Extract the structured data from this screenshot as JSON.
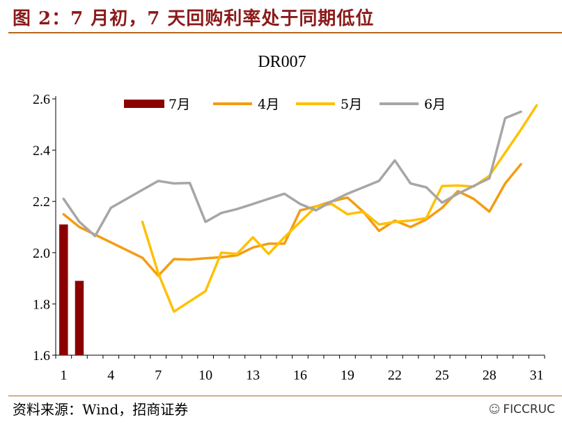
{
  "figure": {
    "title": "图 2：7 月初，7 天回购利率处于同期低位",
    "source": "资料来源：Wind，招商证券",
    "watermark": "FICCRUC",
    "watermark_icon": "wechat-icon"
  },
  "chart_data": {
    "type": "bar+line",
    "title": "DR007",
    "xlabel": "",
    "ylabel": "",
    "xlim": [
      1,
      31
    ],
    "ylim": [
      1.6,
      2.6
    ],
    "x_ticks": [
      "1",
      "4",
      "7",
      "10",
      "13",
      "16",
      "19",
      "22",
      "25",
      "28",
      "31"
    ],
    "y_ticks": [
      "1.6",
      "1.8",
      "2.0",
      "2.2",
      "2.4",
      "2.6"
    ],
    "grid": false,
    "legend_position": "top",
    "series": [
      {
        "name": "7月",
        "type": "bar",
        "color": "#8b0000",
        "x": [
          1,
          2
        ],
        "values": [
          2.11,
          1.89
        ]
      },
      {
        "name": "4月",
        "type": "line",
        "color": "#f39c12",
        "x": [
          1,
          2,
          3,
          4,
          5,
          6,
          7,
          8,
          9,
          10,
          11,
          12,
          13,
          14,
          15,
          16,
          17,
          18,
          19,
          20,
          21,
          22,
          23,
          24,
          25,
          26,
          27,
          28,
          29,
          30
        ],
        "values": [
          2.15,
          2.1,
          2.07,
          2.04,
          2.01,
          1.98,
          1.91,
          1.975,
          1.973,
          1.978,
          1.982,
          1.99,
          2.02,
          2.035,
          2.035,
          2.165,
          2.18,
          2.2,
          2.215,
          2.16,
          2.085,
          2.125,
          2.1,
          2.13,
          2.175,
          2.24,
          2.21,
          2.16,
          2.27,
          2.345
        ]
      },
      {
        "name": "5月",
        "type": "line",
        "color": "#ffc000",
        "x": [
          6,
          7,
          8,
          9,
          10,
          11,
          12,
          13,
          14,
          15,
          16,
          17,
          18,
          19,
          20,
          21,
          22,
          23,
          24,
          25,
          26,
          27,
          28,
          29,
          30,
          31
        ],
        "values": [
          2.12,
          1.92,
          1.77,
          1.81,
          1.85,
          2.0,
          1.995,
          2.06,
          1.995,
          2.06,
          2.12,
          2.18,
          2.19,
          2.15,
          2.16,
          2.11,
          2.12,
          2.125,
          2.135,
          2.26,
          2.262,
          2.258,
          2.3,
          2.39,
          2.48,
          2.575
        ]
      },
      {
        "name": "6月",
        "type": "line",
        "color": "#a6a6a6",
        "x": [
          1,
          2,
          3,
          4,
          5,
          6,
          7,
          8,
          9,
          10,
          11,
          12,
          13,
          14,
          15,
          16,
          17,
          18,
          19,
          20,
          21,
          22,
          23,
          24,
          25,
          26,
          27,
          28,
          29,
          30
        ],
        "values": [
          2.21,
          2.12,
          2.065,
          2.175,
          2.21,
          2.245,
          2.28,
          2.27,
          2.272,
          2.12,
          2.155,
          2.17,
          2.19,
          2.21,
          2.23,
          2.19,
          2.165,
          2.2,
          2.23,
          2.255,
          2.28,
          2.36,
          2.27,
          2.255,
          2.195,
          2.23,
          2.26,
          2.29,
          2.525,
          2.55
        ]
      }
    ]
  }
}
